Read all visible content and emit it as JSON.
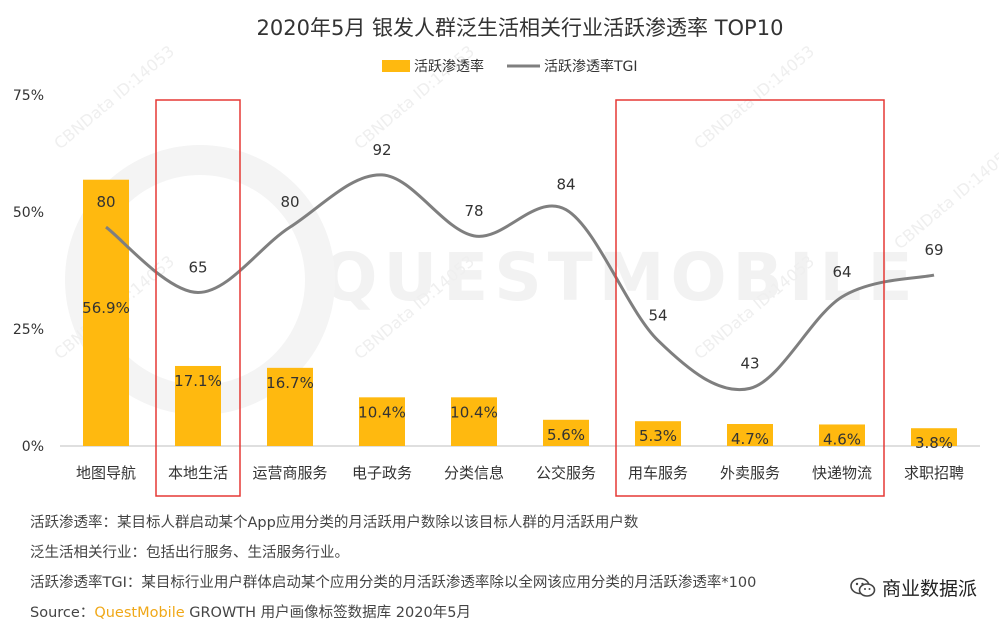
{
  "chart_data": {
    "type": "bar",
    "title": "2020年5月 银发人群泛生活相关行业活跃渗透率 TOP10",
    "categories": [
      "地图导航",
      "本地生活",
      "运营商服务",
      "电子政务",
      "分类信息",
      "公交服务",
      "用车服务",
      "外卖服务",
      "快递物流",
      "求职招聘"
    ],
    "series": [
      {
        "name": "活跃渗透率",
        "kind": "bar",
        "axis": "left",
        "values": [
          56.9,
          17.1,
          16.7,
          10.4,
          10.4,
          5.6,
          5.3,
          4.7,
          4.6,
          3.8
        ],
        "labels": [
          "56.9%",
          "17.1%",
          "16.7%",
          "10.4%",
          "10.4%",
          "5.6%",
          "5.3%",
          "4.7%",
          "4.6%",
          "3.8%"
        ],
        "color": "#FFB90F"
      },
      {
        "name": "活跃渗透率TGI",
        "kind": "line",
        "axis": "right",
        "smooth": true,
        "values": [
          80,
          65,
          80,
          92,
          78,
          84,
          54,
          43,
          64,
          69
        ],
        "color": "#7f7f7f"
      }
    ],
    "ylim": [
      0,
      75
    ],
    "y_ticks": [
      "0%",
      "25%",
      "50%",
      "75%"
    ],
    "y_tick_values": [
      0,
      25,
      50,
      75
    ],
    "tgi_range": [
      30,
      100
    ],
    "legend": "top-center",
    "highlights": [
      [
        "本地生活"
      ],
      [
        "用车服务",
        "外卖服务",
        "快递物流"
      ]
    ],
    "highlight_color": "#e53935",
    "watermark": "QUESTMOBILE",
    "watermark_tag": "CBNData ID:14053"
  },
  "notes": [
    "活跃渗透率：某目标人群启动某个App应用分类的月活跃用户数除以该目标人群的月活跃用户数",
    "泛生活相关行业：包括出行服务、生活服务行业。",
    "活跃渗透率TGI：某目标行业用户群体启动某个应用分类的月活跃渗透率除以全网该应用分类的月活跃渗透率*100"
  ],
  "source": {
    "prefix": "Source：",
    "brand": "QuestMobile",
    "rest": " GROWTH 用户画像标签数据库 2020年5月"
  },
  "wechat_label": "商业数据派",
  "colors": {
    "bar": "#FFB90F",
    "line": "#7f7f7f",
    "highlight": "#e53935",
    "brand": "#f0a818"
  }
}
